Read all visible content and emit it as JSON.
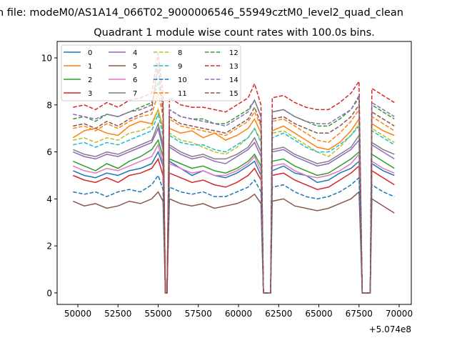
{
  "chart_data": {
    "type": "line",
    "suptitle": "n file: modeM0/AS1A14_066T02_9000006546_55949cztM0_level2_quad_clean",
    "title": "Quadrant 1 module wise count rates with 100.0s bins.",
    "xlabel": "",
    "ylabel": "",
    "x_offset_label": "+5.074e8",
    "xlim": [
      48711,
      70755
    ],
    "ylim": [
      -0.49,
      10.7
    ],
    "xticks": [
      50000,
      52500,
      55000,
      57500,
      60000,
      62500,
      65000,
      67500,
      70000
    ],
    "xtick_labels": [
      "50000",
      "52500",
      "55000",
      "57500",
      "60000",
      "62500",
      "65000",
      "67500",
      "70000"
    ],
    "yticks": [
      0,
      2,
      4,
      6,
      8,
      10
    ],
    "ytick_labels": [
      "0",
      "2",
      "4",
      "6",
      "8",
      "10"
    ],
    "grid": false,
    "legend_placement": "top-left",
    "legend_columns": 4,
    "x": [
      49700,
      50400,
      51100,
      51800,
      52500,
      53200,
      53900,
      54600,
      55000,
      55300,
      55450,
      55550,
      55700,
      56400,
      57100,
      57800,
      58500,
      59200,
      59900,
      60600,
      61000,
      61400,
      61550,
      62000,
      62100,
      62800,
      63500,
      64200,
      64900,
      65600,
      66300,
      67000,
      67500,
      67700,
      68200,
      68300,
      69000,
      69700
    ],
    "series": [
      {
        "name": "0",
        "color": "#1f77b4",
        "dashed": false,
        "values": [
          5.2,
          5.0,
          4.9,
          5.1,
          5.0,
          5.2,
          5.3,
          5.5,
          6.0,
          5.4,
          0,
          0,
          5.6,
          5.3,
          5.0,
          5.2,
          5.0,
          4.9,
          5.1,
          5.4,
          5.6,
          5.0,
          0,
          0,
          5.2,
          5.4,
          5.1,
          5.0,
          4.7,
          4.8,
          5.1,
          5.3,
          5.6,
          0,
          0,
          5.5,
          5.2,
          5.0
        ]
      },
      {
        "name": "1",
        "color": "#ff7f0e",
        "dashed": false,
        "values": [
          6.6,
          6.9,
          7.0,
          6.8,
          6.7,
          7.1,
          7.3,
          7.2,
          7.8,
          7.0,
          0,
          0,
          7.0,
          6.8,
          6.9,
          6.6,
          6.8,
          6.5,
          6.7,
          7.0,
          7.4,
          6.8,
          0,
          0,
          6.9,
          7.1,
          6.8,
          6.5,
          6.2,
          6.1,
          6.4,
          6.9,
          7.4,
          0,
          0,
          7.2,
          6.9,
          6.7
        ]
      },
      {
        "name": "2",
        "color": "#2ca02c",
        "dashed": false,
        "values": [
          5.6,
          5.4,
          5.2,
          5.5,
          5.3,
          5.6,
          5.8,
          6.1,
          6.5,
          5.8,
          0,
          0,
          5.7,
          5.5,
          5.3,
          5.4,
          5.2,
          5.1,
          5.3,
          5.6,
          5.9,
          5.4,
          0,
          0,
          5.6,
          5.7,
          5.4,
          5.2,
          5.0,
          5.1,
          5.4,
          5.7,
          6.0,
          0,
          0,
          5.9,
          5.6,
          5.3
        ]
      },
      {
        "name": "3",
        "color": "#d62728",
        "dashed": false,
        "values": [
          5.0,
          4.8,
          4.7,
          4.9,
          4.7,
          5.0,
          5.1,
          5.3,
          5.7,
          5.0,
          0,
          0,
          5.1,
          4.9,
          4.7,
          4.8,
          4.6,
          4.5,
          4.7,
          5.0,
          5.3,
          4.8,
          0,
          0,
          5.0,
          5.1,
          4.8,
          4.6,
          4.4,
          4.5,
          4.8,
          5.1,
          5.4,
          0,
          0,
          5.2,
          4.9,
          4.6
        ]
      },
      {
        "name": "4",
        "color": "#9467bd",
        "dashed": false,
        "values": [
          6.0,
          5.8,
          5.7,
          5.9,
          5.8,
          6.0,
          6.2,
          6.4,
          7.0,
          6.1,
          0,
          0,
          6.2,
          5.9,
          5.7,
          5.8,
          5.6,
          5.5,
          5.8,
          6.1,
          6.4,
          5.8,
          0,
          0,
          6.0,
          6.1,
          5.8,
          5.6,
          5.4,
          5.5,
          5.8,
          6.1,
          6.5,
          0,
          0,
          6.3,
          6.0,
          5.7
        ]
      },
      {
        "name": "5",
        "color": "#8c564b",
        "dashed": false,
        "values": [
          3.9,
          3.7,
          3.8,
          3.6,
          3.7,
          3.9,
          3.8,
          4.0,
          4.3,
          3.9,
          0,
          0,
          4.0,
          3.8,
          3.7,
          3.8,
          3.6,
          3.7,
          3.8,
          4.0,
          4.2,
          3.8,
          0,
          0,
          3.9,
          4.0,
          3.7,
          3.6,
          3.5,
          3.6,
          3.8,
          4.0,
          4.3,
          0,
          0,
          4.0,
          3.7,
          3.4
        ]
      },
      {
        "name": "6",
        "color": "#e377c2",
        "dashed": false,
        "values": [
          5.4,
          5.2,
          5.1,
          5.3,
          5.2,
          5.4,
          5.6,
          5.8,
          6.3,
          5.5,
          0,
          0,
          5.5,
          5.3,
          5.1,
          5.2,
          5.0,
          5.0,
          5.2,
          5.5,
          5.8,
          5.2,
          0,
          0,
          5.4,
          5.5,
          5.2,
          5.0,
          4.9,
          5.0,
          5.2,
          5.5,
          5.9,
          0,
          0,
          5.6,
          5.3,
          5.1
        ]
      },
      {
        "name": "7",
        "color": "#7f7f7f",
        "dashed": false,
        "values": [
          6.1,
          5.9,
          5.8,
          6.0,
          5.9,
          6.1,
          6.3,
          6.5,
          7.2,
          6.3,
          0,
          0,
          6.3,
          6.0,
          5.8,
          5.9,
          5.7,
          5.7,
          5.9,
          6.2,
          6.6,
          6.0,
          0,
          0,
          6.1,
          6.2,
          5.9,
          5.7,
          5.5,
          5.6,
          5.9,
          6.2,
          6.7,
          0,
          0,
          6.4,
          6.1,
          5.9
        ]
      },
      {
        "name": "8",
        "color": "#bcbd22",
        "dashed": true,
        "values": [
          6.5,
          6.6,
          6.4,
          6.6,
          6.5,
          6.8,
          6.9,
          7.1,
          7.8,
          6.9,
          0,
          0,
          6.8,
          6.5,
          6.4,
          6.2,
          6.0,
          5.9,
          6.2,
          6.6,
          7.0,
          6.5,
          0,
          0,
          6.8,
          6.9,
          6.6,
          6.3,
          6.0,
          5.8,
          6.2,
          6.7,
          7.2,
          0,
          0,
          7.0,
          6.7,
          6.4
        ]
      },
      {
        "name": "9",
        "color": "#17becf",
        "dashed": true,
        "values": [
          6.3,
          6.4,
          6.2,
          6.4,
          6.3,
          6.5,
          6.7,
          6.9,
          7.6,
          6.7,
          0,
          0,
          6.7,
          6.4,
          6.3,
          6.3,
          6.1,
          6.0,
          6.3,
          6.6,
          7.0,
          6.4,
          0,
          0,
          6.6,
          6.8,
          6.5,
          6.2,
          6.0,
          6.0,
          6.3,
          6.7,
          7.1,
          0,
          0,
          6.9,
          6.6,
          6.3
        ]
      },
      {
        "name": "10",
        "color": "#1f77b4",
        "dashed": true,
        "values": [
          4.3,
          4.2,
          4.3,
          4.1,
          4.3,
          4.4,
          4.3,
          4.6,
          5.0,
          4.4,
          0,
          0,
          4.5,
          4.3,
          4.2,
          4.3,
          4.1,
          4.1,
          4.3,
          4.5,
          4.8,
          4.3,
          0,
          0,
          4.5,
          4.6,
          4.3,
          4.1,
          4.0,
          4.1,
          4.3,
          4.6,
          4.9,
          0,
          0,
          4.6,
          4.3,
          4.1
        ]
      },
      {
        "name": "11",
        "color": "#ff7f0e",
        "dashed": true,
        "values": [
          7.0,
          7.1,
          6.9,
          7.2,
          7.0,
          7.3,
          7.5,
          7.6,
          8.5,
          7.5,
          0,
          0,
          7.4,
          7.1,
          7.0,
          6.9,
          6.8,
          6.7,
          7.0,
          7.3,
          7.7,
          7.1,
          0,
          0,
          7.3,
          7.4,
          7.1,
          6.8,
          6.5,
          6.4,
          6.8,
          7.3,
          7.8,
          0,
          0,
          7.5,
          7.2,
          6.9
        ]
      },
      {
        "name": "12",
        "color": "#2ca02c",
        "dashed": true,
        "values": [
          7.4,
          7.5,
          7.3,
          7.6,
          7.5,
          7.7,
          7.9,
          8.1,
          9.0,
          7.9,
          0,
          0,
          7.8,
          7.5,
          7.4,
          7.4,
          7.2,
          7.2,
          7.5,
          7.8,
          8.2,
          7.5,
          0,
          0,
          7.7,
          7.8,
          7.5,
          7.3,
          7.1,
          7.1,
          7.4,
          7.8,
          8.3,
          0,
          0,
          8.0,
          7.7,
          7.4
        ]
      },
      {
        "name": "13",
        "color": "#d62728",
        "dashed": true,
        "values": [
          7.9,
          8.0,
          7.8,
          8.1,
          7.9,
          8.2,
          8.3,
          8.5,
          10.2,
          8.4,
          0,
          0,
          8.3,
          8.0,
          7.9,
          7.9,
          7.8,
          7.7,
          8.0,
          8.3,
          8.9,
          8.0,
          0,
          0,
          8.3,
          8.4,
          8.1,
          7.9,
          7.8,
          7.8,
          8.1,
          8.5,
          9.0,
          0,
          0,
          8.7,
          8.4,
          8.1
        ]
      },
      {
        "name": "14",
        "color": "#9467bd",
        "dashed": true,
        "values": [
          7.6,
          7.5,
          7.4,
          7.6,
          7.5,
          7.7,
          7.8,
          8.0,
          9.5,
          7.9,
          0,
          0,
          7.8,
          7.5,
          7.4,
          7.3,
          7.2,
          7.1,
          7.4,
          7.7,
          8.2,
          7.5,
          0,
          0,
          7.7,
          7.8,
          7.5,
          7.3,
          7.2,
          7.2,
          7.5,
          7.8,
          8.4,
          0,
          0,
          8.1,
          7.8,
          7.5
        ]
      },
      {
        "name": "15",
        "color": "#8c564b",
        "dashed": true,
        "values": [
          7.1,
          7.2,
          7.0,
          7.3,
          7.1,
          7.4,
          7.6,
          7.8,
          9.8,
          7.6,
          0,
          0,
          7.5,
          7.2,
          7.1,
          7.0,
          6.9,
          6.8,
          7.1,
          7.4,
          7.9,
          7.2,
          0,
          0,
          7.4,
          7.5,
          7.2,
          7.0,
          6.8,
          6.8,
          7.1,
          7.5,
          8.0,
          0,
          0,
          7.7,
          7.4,
          7.1
        ]
      }
    ]
  }
}
